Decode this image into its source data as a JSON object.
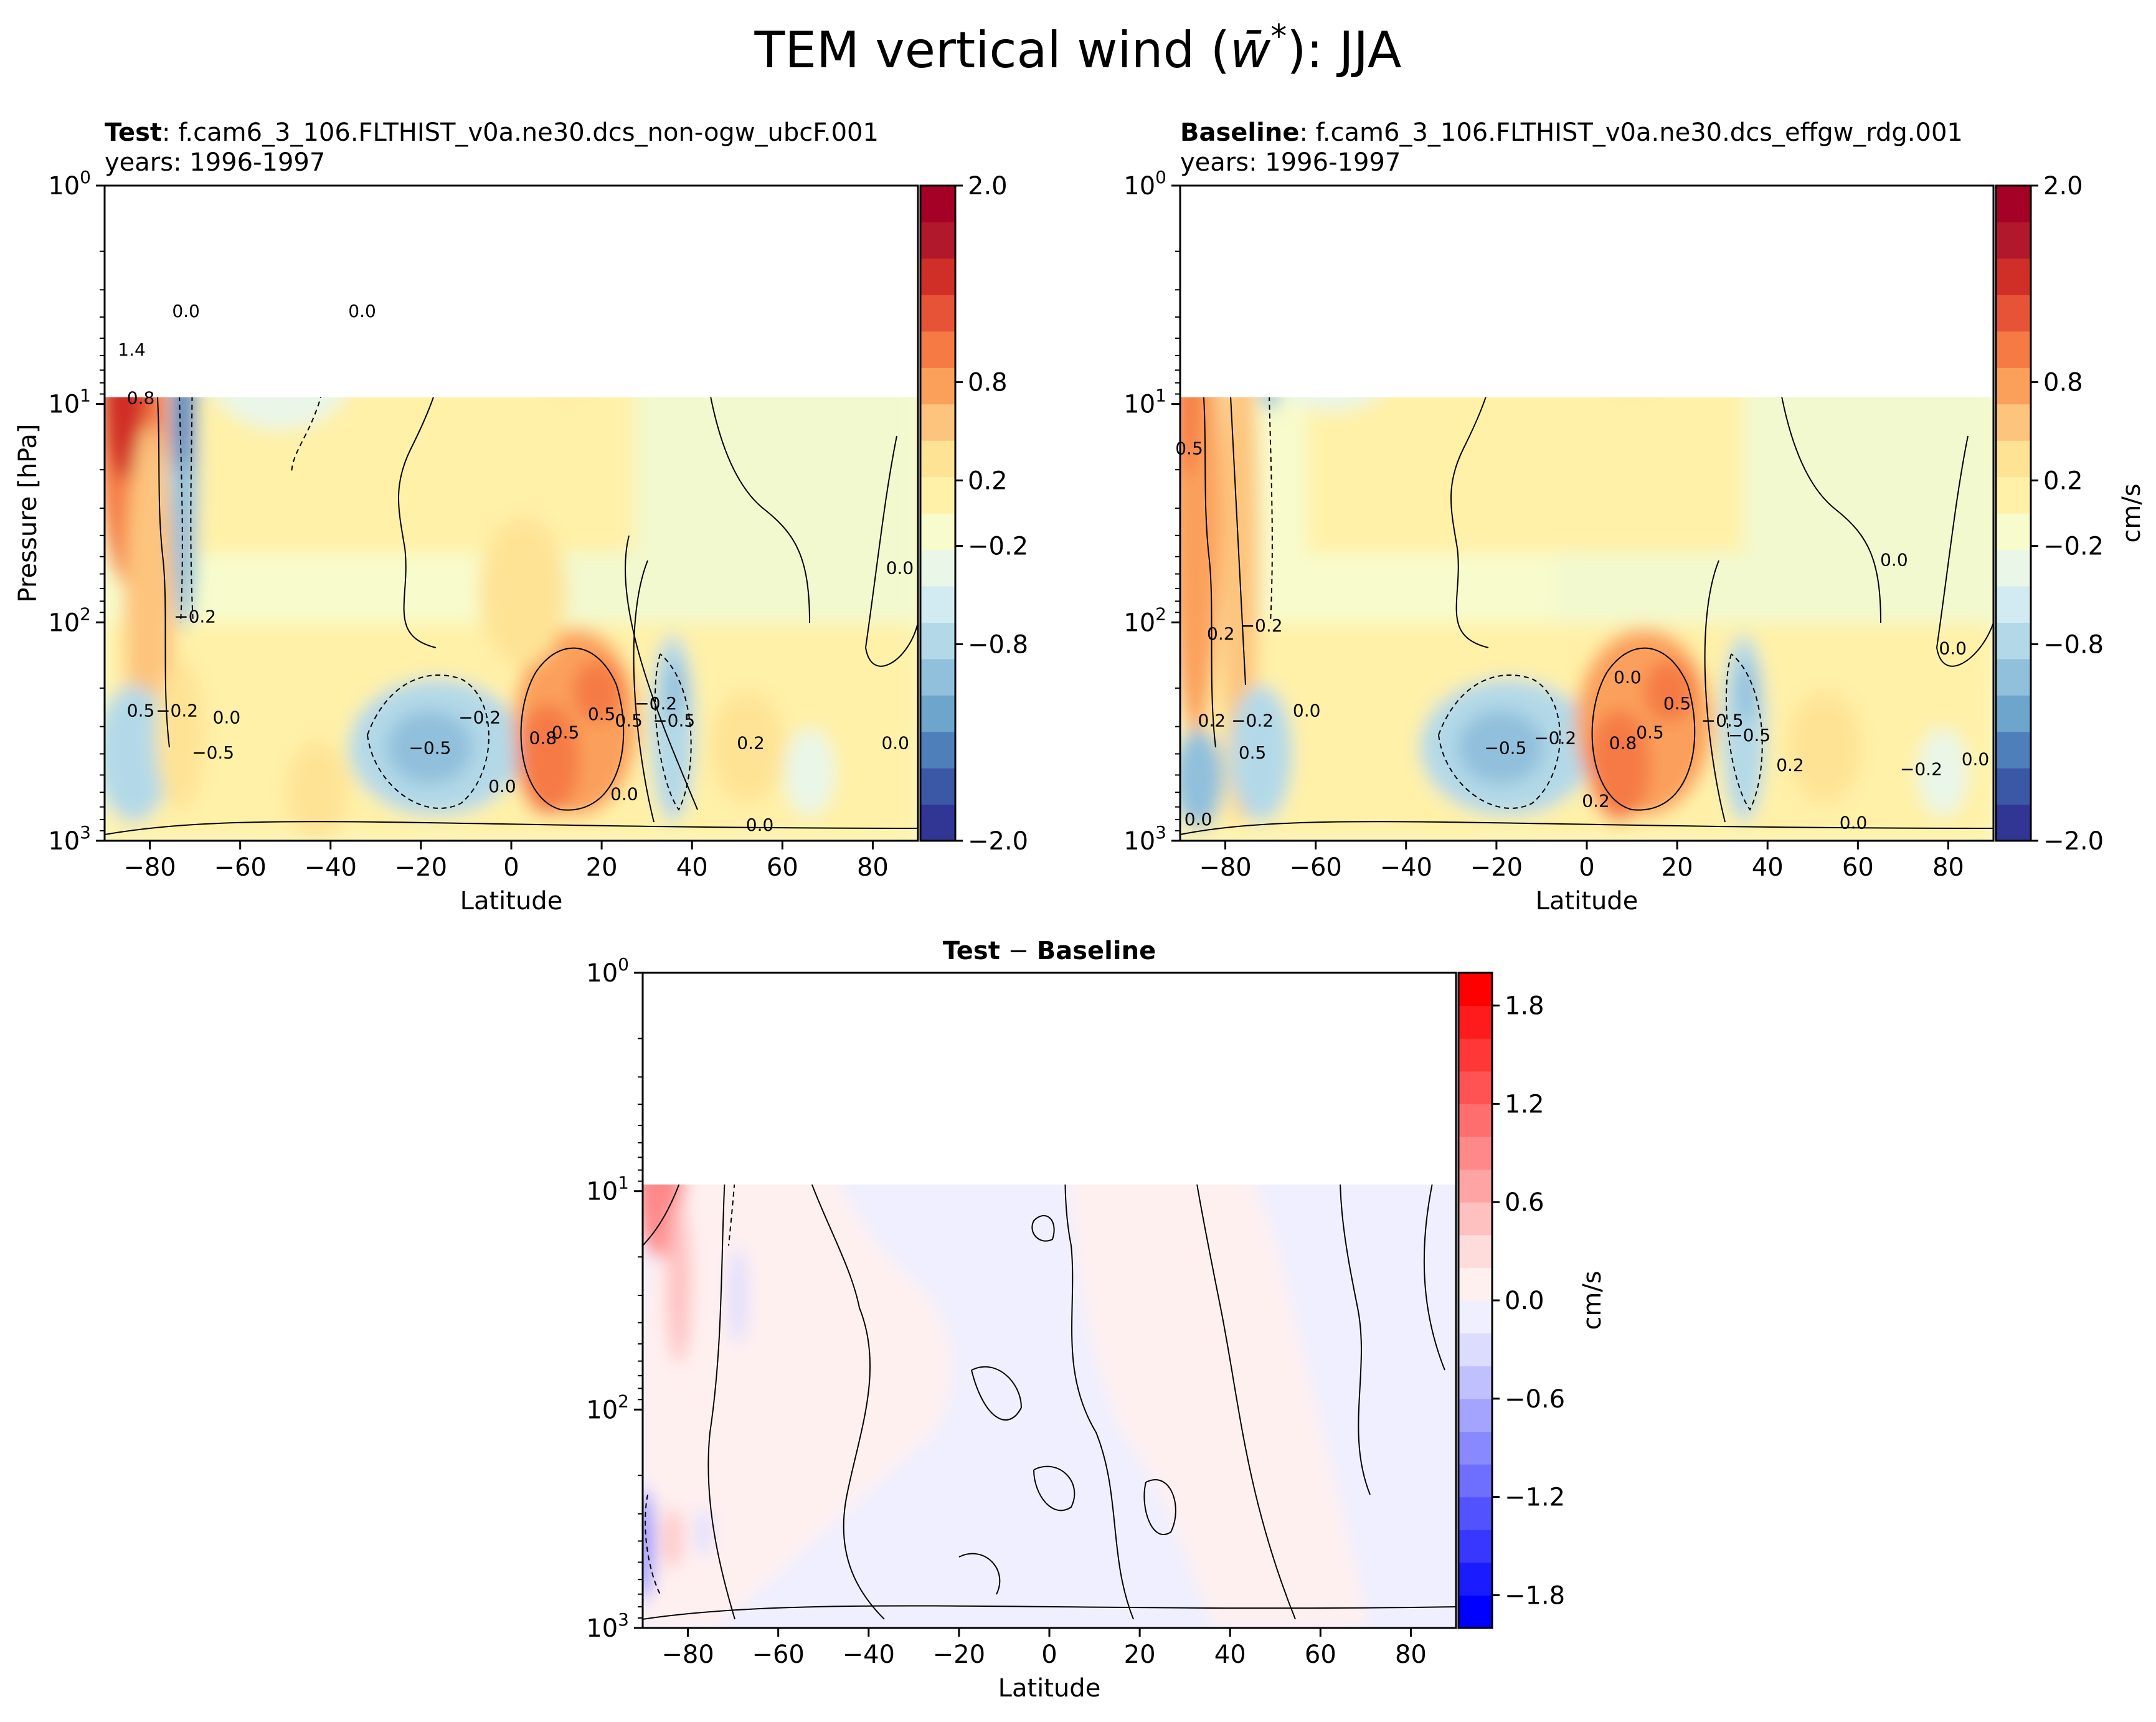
{
  "figure": {
    "title_prefix": "TEM vertical wind (",
    "title_symbol": "w̄",
    "title_superscript": "*",
    "title_suffix": "): JJA"
  },
  "colors": {
    "rdylbu_r": [
      "#313695",
      "#3a58a5",
      "#4e7fbb",
      "#6da5cc",
      "#91c0dc",
      "#b3d9e8",
      "#d2ebf3",
      "#e9f6e8",
      "#f8fbcc",
      "#fff1a8",
      "#fee395",
      "#fdc47d",
      "#fba05b",
      "#f57a44",
      "#e65336",
      "#d02f27",
      "#b2182b",
      "#a50026"
    ],
    "bwr": [
      "#0000ff",
      "#1b1bff",
      "#3737ff",
      "#5252ff",
      "#6e6eff",
      "#8989ff",
      "#a4a4ff",
      "#c0c0ff",
      "#dcdcff",
      "#efefff",
      "#fff0f0",
      "#ffdcdc",
      "#ffc0c0",
      "#ffa4a4",
      "#ff8989",
      "#ff6e6e",
      "#ff5252",
      "#ff3737",
      "#ff1b1b",
      "#ff0000"
    ]
  },
  "chart_data": [
    {
      "type": "contourf",
      "title_bold": "Test",
      "title_text": ": f.cam6_3_106.FLTHIST_v0a.ne30.dcs_non-ogw_ubcF.001",
      "years": "years: 1996-1997",
      "xlabel": "Latitude",
      "ylabel": "Pressure [hPa]",
      "xlim": [
        -90,
        90
      ],
      "ylim_hpa": [
        1000,
        1
      ],
      "y_scale": "log",
      "x_ticks": [
        "−80",
        "−60",
        "−40",
        "−20",
        "0",
        "20",
        "40",
        "60",
        "80"
      ],
      "y_ticks": [
        {
          "base": "10",
          "exp": "0"
        },
        {
          "base": "10",
          "exp": "1"
        },
        {
          "base": "10",
          "exp": "2"
        },
        {
          "base": "10",
          "exp": "3"
        }
      ],
      "colorbar": {
        "levels": [
          -2.0,
          2.0
        ],
        "tick_labels": [
          "2.0",
          "0.8",
          "0.2",
          "−0.2",
          "−0.8",
          "−2.0"
        ],
        "units": "",
        "colormap": "RdYlBu_r"
      },
      "contour_labels": [
        {
          "text": "0.0",
          "lat": -72,
          "p": 4
        },
        {
          "text": "1.4",
          "lat": -84,
          "p": 6
        },
        {
          "text": "0.8",
          "lat": -82,
          "p": 10
        },
        {
          "text": "0.0",
          "lat": -33,
          "p": 4
        },
        {
          "text": "0.0",
          "lat": 86,
          "p": 60
        },
        {
          "text": "−0.2",
          "lat": -70,
          "p": 100
        },
        {
          "text": "0.5",
          "lat": -82,
          "p": 270
        },
        {
          "text": "−0.2",
          "lat": -74,
          "p": 270
        },
        {
          "text": "0.0",
          "lat": -63,
          "p": 290
        },
        {
          "text": "−0.5",
          "lat": -66,
          "p": 420
        },
        {
          "text": "−0.5",
          "lat": -18,
          "p": 400
        },
        {
          "text": "−0.2",
          "lat": -7,
          "p": 290
        },
        {
          "text": "0.0",
          "lat": -2,
          "p": 600
        },
        {
          "text": "0.8",
          "lat": 7,
          "p": 360
        },
        {
          "text": "0.5",
          "lat": 12,
          "p": 340
        },
        {
          "text": "0.5",
          "lat": 20,
          "p": 280
        },
        {
          "text": "0.5",
          "lat": 26,
          "p": 300
        },
        {
          "text": "−0.2",
          "lat": 32,
          "p": 250
        },
        {
          "text": "−0.5",
          "lat": 36,
          "p": 300
        },
        {
          "text": "0.0",
          "lat": 25,
          "p": 650
        },
        {
          "text": "0.2",
          "lat": 53,
          "p": 380
        },
        {
          "text": "0.0",
          "lat": 55,
          "p": 900
        },
        {
          "text": "0.0",
          "lat": 85,
          "p": 380
        }
      ]
    },
    {
      "type": "contourf",
      "title_bold": "Baseline",
      "title_text": ": f.cam6_3_106.FLTHIST_v0a.ne30.dcs_effgw_rdg.001",
      "years": "years: 1996-1997",
      "xlabel": "Latitude",
      "ylabel": "",
      "xlim": [
        -90,
        90
      ],
      "ylim_hpa": [
        1000,
        1
      ],
      "y_scale": "log",
      "x_ticks": [
        "−80",
        "−60",
        "−40",
        "−20",
        "0",
        "20",
        "40",
        "60",
        "80"
      ],
      "y_ticks": [
        {
          "base": "10",
          "exp": "0"
        },
        {
          "base": "10",
          "exp": "1"
        },
        {
          "base": "10",
          "exp": "2"
        },
        {
          "base": "10",
          "exp": "3"
        }
      ],
      "colorbar": {
        "levels": [
          -2.0,
          2.0
        ],
        "tick_labels": [
          "2.0",
          "0.8",
          "0.2",
          "−0.2",
          "−0.8",
          "−2.0"
        ],
        "units": "cm/s",
        "colormap": "RdYlBu_r"
      },
      "contour_labels": [
        {
          "text": "0.5",
          "lat": -88,
          "p": 17
        },
        {
          "text": "0.0",
          "lat": 68,
          "p": 55
        },
        {
          "text": "0.0",
          "lat": 81,
          "p": 140
        },
        {
          "text": "−0.2",
          "lat": -72,
          "p": 110
        },
        {
          "text": "0.2",
          "lat": -81,
          "p": 120
        },
        {
          "text": "0.0",
          "lat": -62,
          "p": 270
        },
        {
          "text": "−0.2",
          "lat": -74,
          "p": 300
        },
        {
          "text": "0.5",
          "lat": -74,
          "p": 420
        },
        {
          "text": "0.2",
          "lat": -83,
          "p": 300
        },
        {
          "text": "0.0",
          "lat": -86,
          "p": 850
        },
        {
          "text": "−0.5",
          "lat": -18,
          "p": 400
        },
        {
          "text": "−0.2",
          "lat": -7,
          "p": 360
        },
        {
          "text": "0.2",
          "lat": 2,
          "p": 700
        },
        {
          "text": "0.0",
          "lat": 9,
          "p": 190
        },
        {
          "text": "0.8",
          "lat": 8,
          "p": 380
        },
        {
          "text": "0.5",
          "lat": 14,
          "p": 340
        },
        {
          "text": "0.5",
          "lat": 20,
          "p": 250
        },
        {
          "text": "−0.5",
          "lat": 30,
          "p": 300
        },
        {
          "text": "−0.5",
          "lat": 36,
          "p": 350
        },
        {
          "text": "0.2",
          "lat": 45,
          "p": 480
        },
        {
          "text": "0.0",
          "lat": 59,
          "p": 880
        },
        {
          "text": "−0.2",
          "lat": 74,
          "p": 500
        },
        {
          "text": "0.0",
          "lat": 86,
          "p": 450
        }
      ]
    },
    {
      "type": "contourf",
      "title_bold_a": "Test",
      "title_minus": " − ",
      "title_bold_b": "Baseline",
      "xlabel": "Latitude",
      "ylabel": "",
      "xlim": [
        -90,
        90
      ],
      "ylim_hpa": [
        1000,
        1
      ],
      "y_scale": "log",
      "x_ticks": [
        "−80",
        "−60",
        "−40",
        "−20",
        "0",
        "20",
        "40",
        "60",
        "80"
      ],
      "y_ticks": [
        {
          "base": "10",
          "exp": "0"
        },
        {
          "base": "10",
          "exp": "1"
        },
        {
          "base": "10",
          "exp": "2"
        },
        {
          "base": "10",
          "exp": "3"
        }
      ],
      "colorbar": {
        "levels": [
          -2.0,
          2.0
        ],
        "tick_labels": [
          "1.8",
          "1.2",
          "0.6",
          "0.0",
          "−0.6",
          "−1.2",
          "−1.8"
        ],
        "units": "cm/s",
        "colormap": "bwr"
      },
      "contour_labels": []
    }
  ]
}
